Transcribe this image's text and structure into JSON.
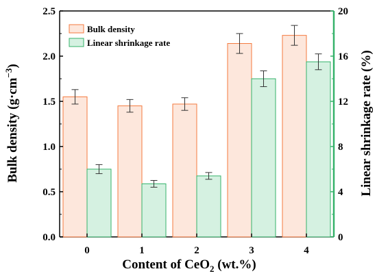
{
  "chart_data": {
    "type": "bar",
    "categories": [
      "0",
      "1",
      "2",
      "3",
      "4"
    ],
    "xlabel_main": "Content of CeO",
    "xlabel_sub": "2",
    "xlabel_tail": " (wt.%)",
    "ylabel_left_main": "Bulk density (g·cm",
    "ylabel_left_sup": "−3",
    "ylabel_left_tail": ")",
    "ylabel_right": "Linear shrinkage rate (%)",
    "ylim_left": [
      0,
      2.5
    ],
    "ylim_right": [
      0,
      20
    ],
    "yticks_left": [
      "0.0",
      "0.5",
      "1.0",
      "1.5",
      "2.0",
      "2.5"
    ],
    "yticks_right": [
      "0",
      "4",
      "8",
      "12",
      "16",
      "20"
    ],
    "legend_position": "top-left",
    "series": [
      {
        "name": "Bulk density",
        "axis": "left",
        "values": [
          1.55,
          1.45,
          1.47,
          2.14,
          2.23
        ],
        "errors": [
          0.08,
          0.07,
          0.07,
          0.11,
          0.11
        ],
        "fill": "#fde7dc",
        "edge": "#f47a3e"
      },
      {
        "name": "Linear shrinkage rate",
        "axis": "right",
        "values": [
          6.0,
          4.7,
          5.4,
          14.0,
          15.5
        ],
        "errors": [
          0.4,
          0.3,
          0.3,
          0.7,
          0.7
        ],
        "fill": "#d5f1e1",
        "edge": "#35b26a"
      }
    ],
    "colors": {
      "left_axis": "#000000",
      "right_axis": "#000000"
    }
  }
}
